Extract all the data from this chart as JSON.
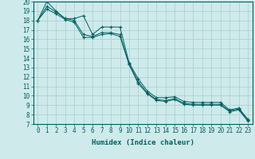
{
  "xlabel": "Humidex (Indice chaleur)",
  "background_color": "#ceeaea",
  "grid_color": "#aacccc",
  "line_color": "#006060",
  "xlim": [
    -0.5,
    23.5
  ],
  "ylim": [
    7,
    20
  ],
  "xticks": [
    0,
    1,
    2,
    3,
    4,
    5,
    6,
    7,
    8,
    9,
    10,
    11,
    12,
    13,
    14,
    15,
    16,
    17,
    18,
    19,
    20,
    21,
    22,
    23
  ],
  "yticks": [
    7,
    8,
    9,
    10,
    11,
    12,
    13,
    14,
    15,
    16,
    17,
    18,
    19,
    20
  ],
  "series": [
    [
      18,
      20,
      19,
      18.2,
      18.2,
      18.5,
      16.5,
      17.3,
      17.3,
      17.3,
      13.5,
      11.8,
      10.5,
      9.8,
      9.8,
      9.9,
      9.4,
      9.3,
      9.3,
      9.3,
      9.3,
      8.5,
      8.7,
      7.5
    ],
    [
      18,
      19.5,
      18.9,
      18.2,
      18.0,
      16.5,
      16.3,
      16.7,
      16.7,
      16.5,
      13.4,
      11.5,
      10.3,
      9.6,
      9.5,
      9.7,
      9.2,
      9.1,
      9.1,
      9.1,
      9.1,
      8.4,
      8.6,
      7.4
    ],
    [
      18,
      19.2,
      18.7,
      18.1,
      17.8,
      16.2,
      16.2,
      16.5,
      16.6,
      16.3,
      13.3,
      11.3,
      10.2,
      9.5,
      9.4,
      9.6,
      9.1,
      9.0,
      9.0,
      9.0,
      9.0,
      8.3,
      8.5,
      7.3
    ]
  ],
  "tick_fontsize": 5.5,
  "xlabel_fontsize": 6.5
}
